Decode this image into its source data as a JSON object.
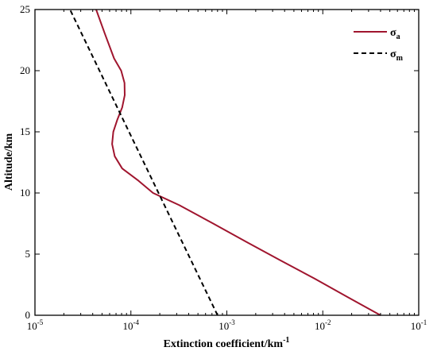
{
  "chart_data": {
    "type": "line",
    "xscale": "log",
    "xlim": [
      1e-05,
      0.1
    ],
    "ylim": [
      0,
      25
    ],
    "xlabel": "Extinction coefficient/km",
    "xlabel_sup": "-1",
    "ylabel": "Altitude/km",
    "legend_position": "top-right",
    "x_ticks": [
      {
        "base": "10",
        "exp": "-5",
        "value": 1e-05
      },
      {
        "base": "10",
        "exp": "-4",
        "value": 0.0001
      },
      {
        "base": "10",
        "exp": "-3",
        "value": 0.001
      },
      {
        "base": "10",
        "exp": "-2",
        "value": 0.01
      },
      {
        "base": "10",
        "exp": "-1",
        "value": 0.1
      }
    ],
    "y_ticks": [
      {
        "label": "0",
        "value": 0
      },
      {
        "label": "5",
        "value": 5
      },
      {
        "label": "10",
        "value": 10
      },
      {
        "label": "15",
        "value": 15
      },
      {
        "label": "20",
        "value": 20
      },
      {
        "label": "25",
        "value": 25
      }
    ],
    "series": [
      {
        "name": "σ",
        "subscript": "a",
        "color": "#a0152e",
        "dash": "solid",
        "x": [
          0.04,
          0.018,
          0.0082,
          0.0036,
          0.0016,
          0.00072,
          0.00032,
          0.00017,
          0.00012,
          8.12e-05,
          6.79e-05,
          6.37e-05,
          6.55e-05,
          7.22e-05,
          8.12e-05,
          8.62e-05,
          8.58e-05,
          7.92e-05,
          6.68e-05,
          5.37e-05,
          4.34e-05
        ],
        "y": [
          0,
          1.5,
          3,
          4.5,
          6,
          7.5,
          9,
          10,
          11,
          12,
          13,
          14,
          15,
          16,
          17,
          18,
          19,
          20,
          21,
          23,
          25
        ]
      },
      {
        "name": "σ",
        "subscript": "m",
        "color": "#000000",
        "dash": "dashed",
        "x": [
          0.0008,
          2.32e-05
        ],
        "y": [
          0,
          25
        ]
      }
    ]
  }
}
